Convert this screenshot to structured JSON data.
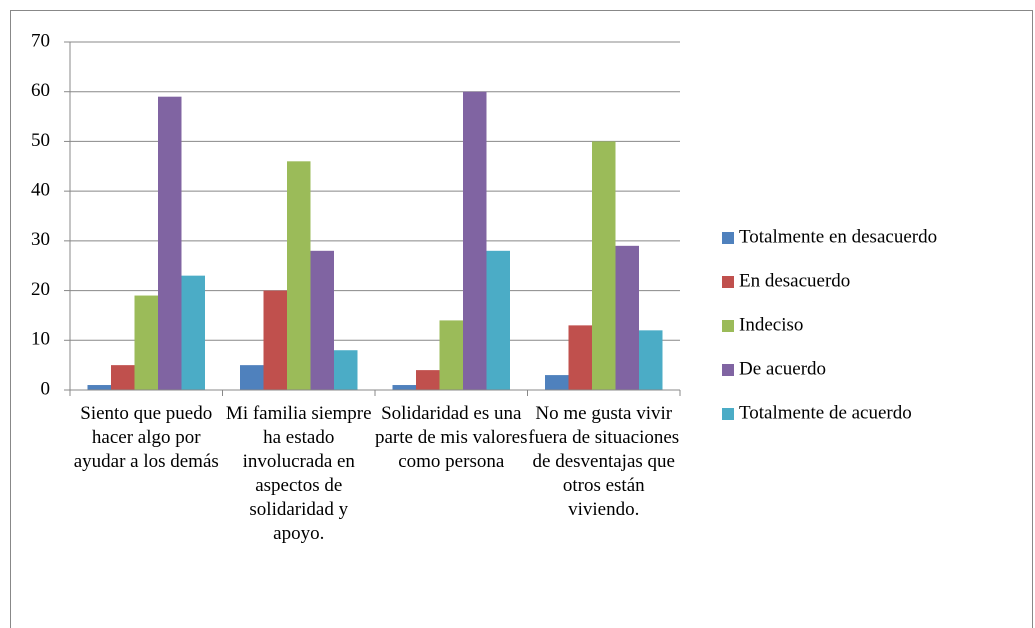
{
  "chart_data": {
    "type": "bar",
    "categories": [
      "Siento que puedo hacer algo por ayudar a los demás",
      "Mi familia siempre ha estado involucrada en aspectos de solidaridad y apoyo.",
      "Solidaridad es una parte de mis valores como persona",
      "No me gusta vivir fuera de situaciones de desventajas que otros están viviendo."
    ],
    "series": [
      {
        "name": "Totalmente en desacuerdo",
        "color": "#4f81bd",
        "values": [
          1,
          5,
          1,
          3
        ]
      },
      {
        "name": "En desacuerdo",
        "color": "#c0504d",
        "values": [
          5,
          20,
          4,
          13
        ]
      },
      {
        "name": "Indeciso",
        "color": "#9bbb59",
        "values": [
          19,
          46,
          14,
          50
        ]
      },
      {
        "name": "De acuerdo",
        "color": "#8064a2",
        "values": [
          59,
          28,
          60,
          29
        ]
      },
      {
        "name": "Totalmente de acuerdo",
        "color": "#4bacc6",
        "values": [
          23,
          8,
          28,
          12
        ]
      }
    ],
    "ylim": [
      0,
      70
    ],
    "yticks": [
      0,
      10,
      20,
      30,
      40,
      50,
      60,
      70
    ],
    "grid": true,
    "legend": "right"
  }
}
